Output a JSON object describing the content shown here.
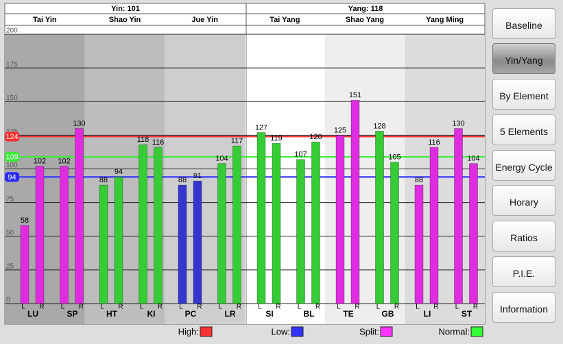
{
  "header": {
    "yin": "Yin: 101",
    "yang": "Yang: 118"
  },
  "chart_data": {
    "type": "bar",
    "groups": [
      {
        "name": "Tai Yin",
        "background": "#a9a9a9",
        "meridians": [
          {
            "name": "LU",
            "color": "#e02ce0",
            "values": [
              58,
              102
            ]
          },
          {
            "name": "SP",
            "color": "#e02ce0",
            "values": [
              102,
              130
            ]
          }
        ]
      },
      {
        "name": "Shao Yin",
        "background": "#bdbdbd",
        "meridians": [
          {
            "name": "HT",
            "color": "#35cc35",
            "values": [
              88,
              94
            ]
          },
          {
            "name": "KI",
            "color": "#35cc35",
            "values": [
              118,
              116
            ]
          }
        ]
      },
      {
        "name": "Jue Yin",
        "background": "#cecece",
        "meridians": [
          {
            "name": "PC",
            "color": "#3535d0",
            "values": [
              88,
              91
            ]
          },
          {
            "name": "LR",
            "color": "#35cc35",
            "values": [
              104,
              117
            ]
          }
        ]
      },
      {
        "name": "Tai Yang",
        "background": "#ffffff",
        "meridians": [
          {
            "name": "SI",
            "color": "#35cc35",
            "values": [
              127,
              119
            ]
          },
          {
            "name": "BL",
            "color": "#35cc35",
            "values": [
              107,
              120
            ]
          }
        ]
      },
      {
        "name": "Shao Yang",
        "background": "#eeeeee",
        "meridians": [
          {
            "name": "TE",
            "color": "#e02ce0",
            "values": [
              125,
              151
            ]
          },
          {
            "name": "GB",
            "color": "#35cc35",
            "values": [
              128,
              105
            ]
          }
        ]
      },
      {
        "name": "Yang Ming",
        "background": "#dcdcdc",
        "meridians": [
          {
            "name": "LI",
            "color": "#e02ce0",
            "values": [
              88,
              116
            ]
          },
          {
            "name": "ST",
            "color": "#e02ce0",
            "values": [
              130,
              104
            ]
          }
        ]
      }
    ],
    "side_labels": [
      "L",
      "R"
    ],
    "ylim": [
      0,
      200
    ],
    "yticks": [
      0,
      25,
      50,
      75,
      100,
      125,
      150,
      175,
      200
    ],
    "grid": true,
    "reference_lines": [
      {
        "value": 124,
        "color": "#ff2a2a"
      },
      {
        "value": 109,
        "color": "#33ee33"
      },
      {
        "value": 94,
        "color": "#2a2aff"
      }
    ],
    "legend": [
      {
        "name": "High:",
        "color": "#ff3333"
      },
      {
        "name": "Low:",
        "color": "#3333ff"
      },
      {
        "name": "Split:",
        "color": "#ff33ff"
      },
      {
        "name": "Normal:",
        "color": "#33ff33"
      }
    ]
  },
  "sidebar": {
    "buttons": [
      {
        "label": "Baseline",
        "selected": false
      },
      {
        "label": "Yin/Yang",
        "selected": true
      },
      {
        "label": "By Element",
        "selected": false
      },
      {
        "label": "5 Elements",
        "selected": false
      },
      {
        "label": "Energy Cycle",
        "selected": false
      },
      {
        "label": "Horary",
        "selected": false
      },
      {
        "label": "Ratios",
        "selected": false
      },
      {
        "label": "P.I.E.",
        "selected": false
      },
      {
        "label": "Information",
        "selected": false
      }
    ]
  }
}
